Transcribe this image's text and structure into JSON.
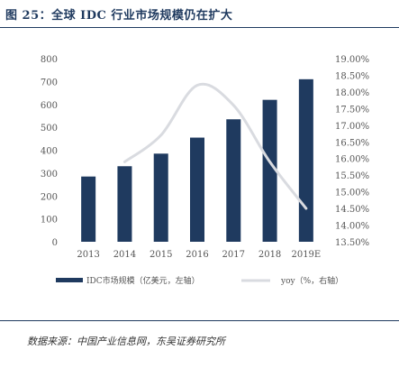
{
  "figure": {
    "title": "图 25：全球 IDC 行业市场规模仍在扩大",
    "source": "数据来源：中国产业信息网，东吴证券研究所"
  },
  "chart_data": {
    "type": "bar+line",
    "categories": [
      "2013",
      "2014",
      "2015",
      "2016",
      "2017",
      "2018",
      "2019E"
    ],
    "series": [
      {
        "name": "IDC市场规模（亿美元，左轴）",
        "type": "bar",
        "axis": "left",
        "color": "#1f3a5f",
        "values": [
          285,
          330,
          385,
          455,
          535,
          620,
          710
        ]
      },
      {
        "name": "yoy（%，右轴）",
        "type": "line",
        "axis": "right",
        "color": "#d9dbe0",
        "values": [
          null,
          15.9,
          16.7,
          18.2,
          17.6,
          15.9,
          14.5
        ]
      }
    ],
    "y_left": {
      "ylim": [
        0,
        800
      ],
      "ticks": [
        "0",
        "100",
        "200",
        "300",
        "400",
        "500",
        "600",
        "700",
        "800"
      ]
    },
    "y_right": {
      "ylim": [
        13.5,
        19.0
      ],
      "ticks": [
        "13.50%",
        "14.00%",
        "14.50%",
        "15.00%",
        "15.50%",
        "16.00%",
        "16.50%",
        "17.00%",
        "17.50%",
        "18.00%",
        "18.50%",
        "19.00%"
      ]
    },
    "grid": false,
    "legend_position": "bottom"
  }
}
